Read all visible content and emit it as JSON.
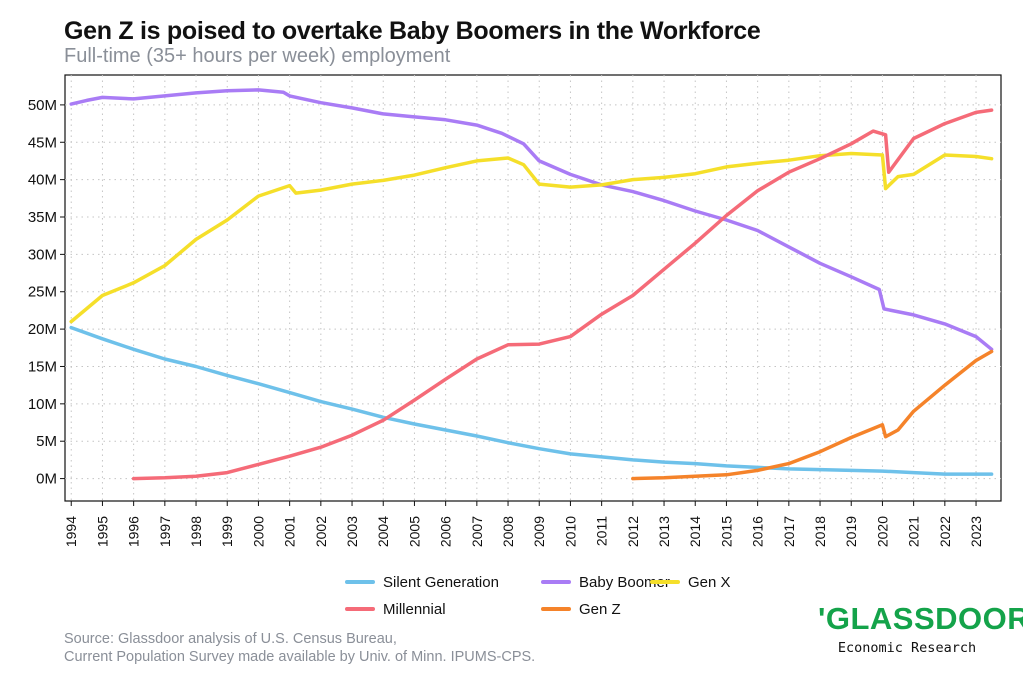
{
  "title": "Gen Z is poised to overtake Baby Boomers in the Workforce",
  "subtitle": "Full-time (35+ hours per week) employment",
  "source_line1": "Source: Glassdoor analysis of U.S. Census Bureau,",
  "source_line2": "Current Population Survey made available by Univ. of Minn. IPUMS-CPS.",
  "logo": {
    "word": "'GLASSDOOR'",
    "sub": "Economic Research",
    "color": "#14a34a"
  },
  "chart_data": {
    "type": "line",
    "title": "Gen Z is poised to overtake Baby Boomers in the Workforce",
    "subtitle": "Full-time (35+ hours per week) employment",
    "xlabel": "",
    "ylabel": "",
    "xlim": [
      1993.8,
      2023.8
    ],
    "ylim": [
      -3,
      54
    ],
    "x_ticks": [
      1994,
      1995,
      1996,
      1997,
      1998,
      1999,
      2000,
      2001,
      2002,
      2003,
      2004,
      2005,
      2006,
      2007,
      2008,
      2009,
      2010,
      2011,
      2012,
      2013,
      2014,
      2015,
      2016,
      2017,
      2018,
      2019,
      2020,
      2021,
      2022,
      2023
    ],
    "x_tick_labels": [
      "1994",
      "1995",
      "1996",
      "1997",
      "1998",
      "1999",
      "2000",
      "2001",
      "2002",
      "2003",
      "2004",
      "2005",
      "2006",
      "2007",
      "2008",
      "2009",
      "2010",
      "2011",
      "2012",
      "2013",
      "2014",
      "2015",
      "2016",
      "2017",
      "2018",
      "2019",
      "2020",
      "2021",
      "2022",
      "2023"
    ],
    "y_ticks": [
      0,
      5,
      10,
      15,
      20,
      25,
      30,
      35,
      40,
      45,
      50
    ],
    "y_tick_labels": [
      "0M",
      "5M",
      "10M",
      "15M",
      "20M",
      "25M",
      "30M",
      "35M",
      "40M",
      "45M",
      "50M"
    ],
    "grid": true,
    "legend_position": "bottom",
    "series": [
      {
        "name": "Silent Generation",
        "color": "#6ec1ea",
        "x": [
          1994,
          1995,
          1996,
          1997,
          1998,
          1999,
          2000,
          2001,
          2002,
          2003,
          2004,
          2005,
          2006,
          2007,
          2008,
          2009,
          2010,
          2011,
          2012,
          2013,
          2014,
          2015,
          2016,
          2017,
          2018,
          2019,
          2020,
          2021,
          2022,
          2023,
          2023.5
        ],
        "y": [
          20.2,
          18.7,
          17.3,
          16.0,
          15.0,
          13.8,
          12.7,
          11.5,
          10.3,
          9.3,
          8.2,
          7.3,
          6.5,
          5.7,
          4.8,
          4.0,
          3.3,
          2.9,
          2.5,
          2.2,
          2.0,
          1.7,
          1.5,
          1.3,
          1.2,
          1.1,
          1.0,
          0.8,
          0.6,
          0.6,
          0.6
        ]
      },
      {
        "name": "Baby Boomer",
        "color": "#a97cf5",
        "x": [
          1994,
          1994.5,
          1995,
          1996,
          1997,
          1998,
          1999,
          2000,
          2000.8,
          2001,
          2002,
          2003,
          2004,
          2005,
          2006,
          2007,
          2007.8,
          2008.5,
          2009,
          2010,
          2011,
          2012,
          2013,
          2014,
          2015,
          2016,
          2017,
          2018,
          2019,
          2019.9,
          2020.05,
          2021,
          2022,
          2023,
          2023.5
        ],
        "y": [
          50.1,
          50.6,
          51.0,
          50.8,
          51.2,
          51.6,
          51.9,
          52.0,
          51.7,
          51.2,
          50.3,
          49.6,
          48.8,
          48.4,
          48.0,
          47.3,
          46.2,
          44.8,
          42.5,
          40.7,
          39.3,
          38.4,
          37.2,
          35.8,
          34.6,
          33.2,
          31.0,
          28.8,
          27.0,
          25.3,
          22.7,
          21.9,
          20.7,
          19.0,
          17.3
        ]
      },
      {
        "name": "Gen X",
        "color": "#f5df2a",
        "x": [
          1994,
          1995,
          1996,
          1997,
          1998,
          1999,
          2000,
          2001,
          2001.2,
          2002,
          2003,
          2004,
          2005,
          2006,
          2007,
          2008,
          2008.5,
          2009,
          2010,
          2011,
          2012,
          2013,
          2014,
          2015,
          2016,
          2017,
          2018,
          2019,
          2020,
          2020.1,
          2020.5,
          2021,
          2022,
          2023,
          2023.5
        ],
        "y": [
          21.0,
          24.5,
          26.2,
          28.5,
          32.0,
          34.6,
          37.8,
          39.2,
          38.2,
          38.6,
          39.4,
          39.9,
          40.6,
          41.6,
          42.5,
          42.9,
          42.0,
          39.4,
          39.0,
          39.3,
          40.0,
          40.3,
          40.8,
          41.7,
          42.2,
          42.6,
          43.2,
          43.5,
          43.3,
          38.8,
          40.4,
          40.7,
          43.3,
          43.1,
          42.8
        ]
      },
      {
        "name": "Millennial",
        "color": "#f56b78",
        "x": [
          1996,
          1997,
          1998,
          1999,
          2000,
          2001,
          2002,
          2003,
          2004,
          2005,
          2006,
          2007,
          2008,
          2009,
          2010,
          2011,
          2012,
          2013,
          2014,
          2015,
          2016,
          2017,
          2018,
          2019,
          2019.7,
          2020.1,
          2020.2,
          2021,
          2022,
          2023,
          2023.5
        ],
        "y": [
          0.0,
          0.1,
          0.3,
          0.8,
          1.9,
          3.0,
          4.2,
          5.8,
          7.8,
          10.5,
          13.3,
          16.0,
          17.9,
          18.0,
          19.0,
          22.0,
          24.5,
          28.0,
          31.5,
          35.2,
          38.5,
          41.0,
          42.8,
          44.8,
          46.5,
          46.0,
          41.0,
          45.5,
          47.5,
          49.0,
          49.3
        ]
      },
      {
        "name": "Gen Z",
        "color": "#f5832a",
        "x": [
          2012,
          2013,
          2014,
          2015,
          2016,
          2017,
          2018,
          2019,
          2020,
          2020.1,
          2020.5,
          2021,
          2022,
          2023,
          2023.5
        ],
        "y": [
          0.0,
          0.1,
          0.3,
          0.5,
          1.1,
          2.0,
          3.6,
          5.5,
          7.2,
          5.6,
          6.5,
          9.0,
          12.5,
          15.8,
          17.0
        ]
      }
    ]
  }
}
